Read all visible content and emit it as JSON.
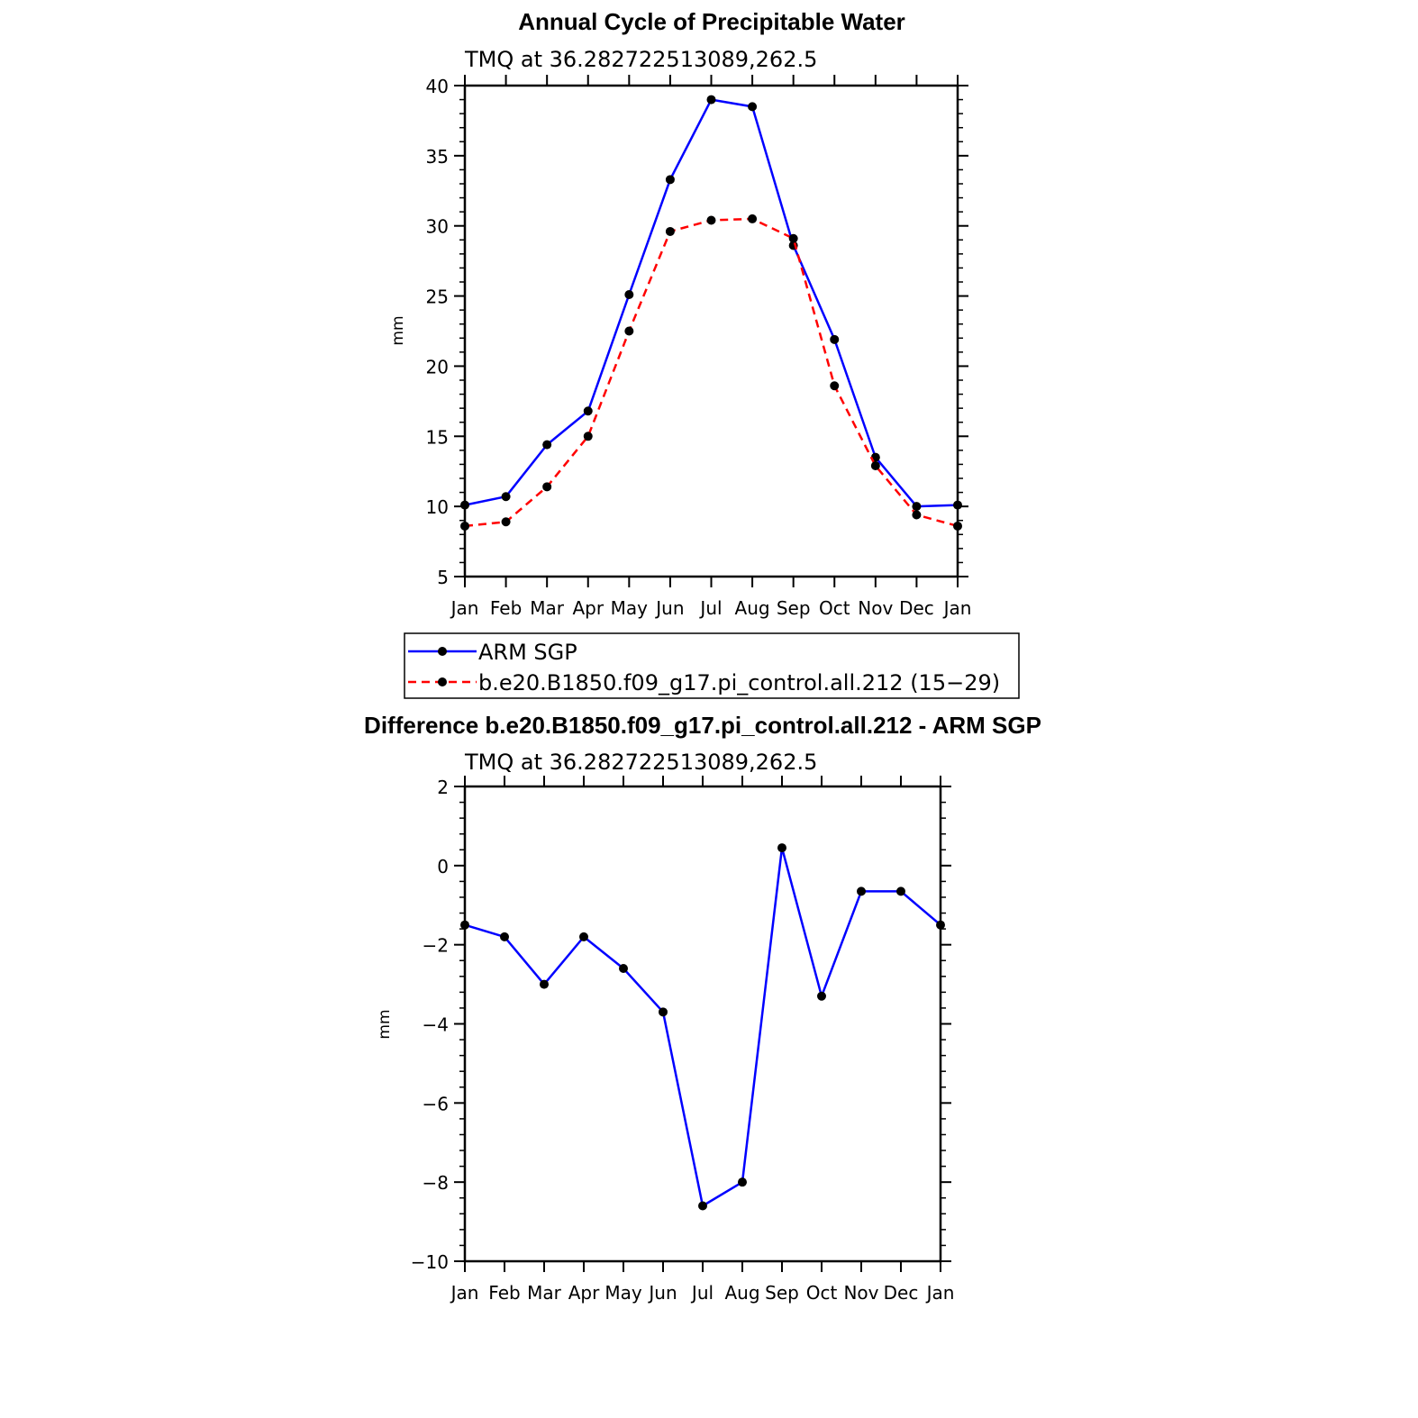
{
  "chart_data": [
    {
      "type": "line",
      "title": "Annual Cycle of Precipitable Water",
      "subtitle": "TMQ at 36.282722513089,262.5",
      "xlabel": "",
      "ylabel": "mm",
      "categories": [
        "Jan",
        "Feb",
        "Mar",
        "Apr",
        "May",
        "Jun",
        "Jul",
        "Aug",
        "Sep",
        "Oct",
        "Nov",
        "Dec",
        "Jan"
      ],
      "ylim": [
        5,
        40
      ],
      "yticks": [
        5,
        10,
        15,
        20,
        25,
        30,
        35,
        40
      ],
      "series": [
        {
          "name": "ARM SGP",
          "color": "#0000ff",
          "dashed": false,
          "values": [
            10.1,
            10.7,
            14.4,
            16.8,
            25.1,
            33.3,
            39.0,
            38.5,
            28.6,
            21.9,
            13.5,
            10.0,
            10.1
          ]
        },
        {
          "name": "b.e20.B1850.f09_g17.pi_control.all.212 (15−29)",
          "color": "#ff0000",
          "dashed": true,
          "values": [
            8.6,
            8.9,
            11.4,
            15.0,
            22.5,
            29.6,
            30.4,
            30.5,
            29.1,
            18.6,
            12.9,
            9.4,
            8.6
          ]
        }
      ],
      "legend_position": "bottom-center"
    },
    {
      "type": "line",
      "title": "Difference b.e20.B1850.f09_g17.pi_control.all.212 - ARM SGP",
      "subtitle": "TMQ at 36.282722513089,262.5",
      "xlabel": "",
      "ylabel": "mm",
      "categories": [
        "Jan",
        "Feb",
        "Mar",
        "Apr",
        "May",
        "Jun",
        "Jul",
        "Aug",
        "Sep",
        "Oct",
        "Nov",
        "Dec",
        "Jan"
      ],
      "ylim": [
        -10,
        2
      ],
      "yticks": [
        -10,
        -8,
        -6,
        -4,
        -2,
        0,
        2
      ],
      "ytick_labels": [
        "−10",
        "−8",
        "−6",
        "−4",
        "−2",
        "0",
        "2"
      ],
      "series": [
        {
          "name": "Difference",
          "color": "#0000ff",
          "dashed": false,
          "values": [
            -1.5,
            -1.8,
            -3.0,
            -1.8,
            -2.6,
            -3.7,
            -8.6,
            -8.0,
            0.45,
            -3.3,
            -0.65,
            -0.65,
            -1.5
          ]
        }
      ]
    }
  ]
}
